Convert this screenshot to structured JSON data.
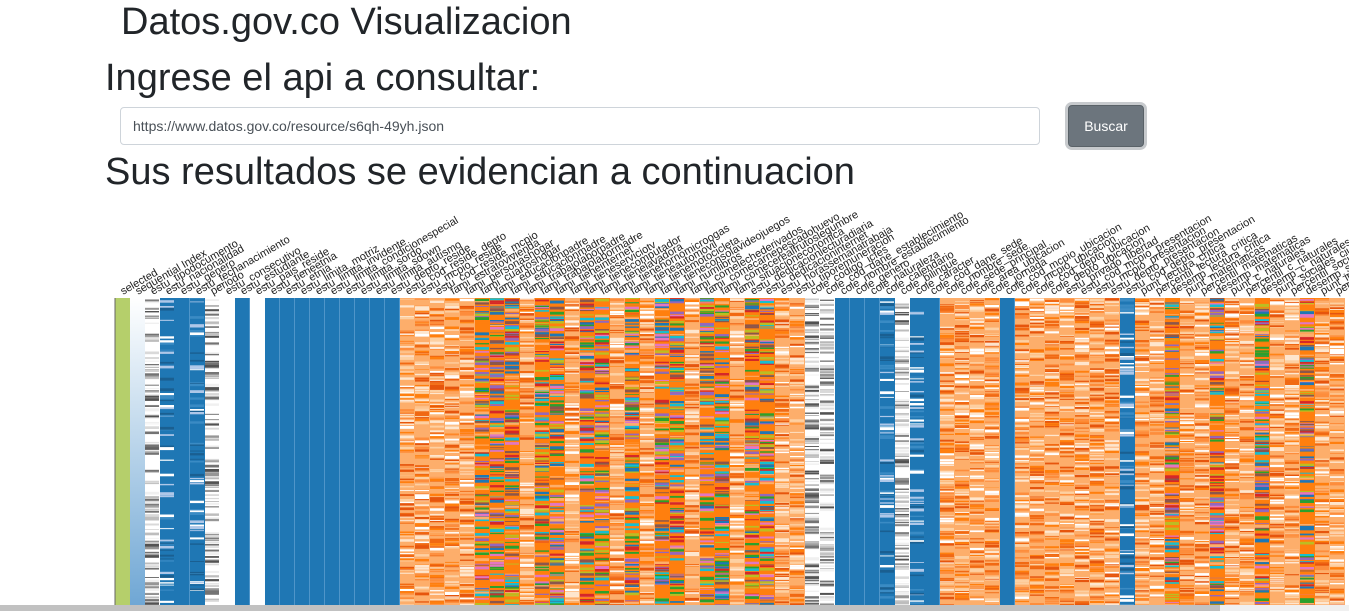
{
  "header": {
    "site_title": "Datos.gov.co Visualizacion",
    "api_prompt": "Ingrese el api a consultar:",
    "results_heading": "Sus resultados se evidencian a continuacion"
  },
  "search": {
    "value": "https://www.datos.gov.co/resource/s6qh-49yh.json",
    "button_label": "Buscar"
  },
  "colors": {
    "blue": "#1f77b4",
    "orange": "#ff7f0e",
    "green": "#2ca02c",
    "red": "#d62728",
    "purple": "#9467bd",
    "brown": "#8c564b",
    "pink": "#e377c2",
    "olive": "#bcbd22",
    "teal": "#17becf",
    "selected": "#b5cf6b"
  },
  "chart_data": {
    "type": "heatmap",
    "title": "",
    "columns": [
      {
        "name": "selected",
        "style": "selected"
      },
      {
        "name": "sequential Index",
        "style": "grad"
      },
      {
        "name": "estu_tipodocumento",
        "style": "gray"
      },
      {
        "name": "estu_nacionalidad",
        "style": "blue_dense"
      },
      {
        "name": "estu_genero",
        "style": "blue"
      },
      {
        "name": "estu_fechanacimiento",
        "style": "blue_dense"
      },
      {
        "name": "periodo",
        "style": "gray"
      },
      {
        "name": "estu_consecutivo",
        "style": "white"
      },
      {
        "name": "estu_estudiante",
        "style": "blue"
      },
      {
        "name": "estu_pais_reside",
        "style": "white"
      },
      {
        "name": "estu_tieneetnia",
        "style": "blue"
      },
      {
        "name": "estu_etnia",
        "style": "blue"
      },
      {
        "name": "estu_limita_motriz",
        "style": "blue"
      },
      {
        "name": "estu_limita_invidente",
        "style": "blue"
      },
      {
        "name": "estu_limita_condicionespecial",
        "style": "blue"
      },
      {
        "name": "estu_limita_sordo",
        "style": "blue"
      },
      {
        "name": "estu_limita_sdown",
        "style": "blue"
      },
      {
        "name": "estu_limita_autismo",
        "style": "blue"
      },
      {
        "name": "estu_depto_reside",
        "style": "blue"
      },
      {
        "name": "estu_cod_reside_depto",
        "style": "orange"
      },
      {
        "name": "estu_mcpio_reside",
        "style": "orange"
      },
      {
        "name": "estu_cod_reside_mcpio",
        "style": "orange"
      },
      {
        "name": "fami_estratovivienda",
        "style": "orange"
      },
      {
        "name": "fami_personashogar",
        "style": "orange"
      },
      {
        "name": "fami_cuartoshogar",
        "style": "mixed"
      },
      {
        "name": "fami_educacionpadre",
        "style": "mixed"
      },
      {
        "name": "fami_educacionmadre",
        "style": "mixed"
      },
      {
        "name": "fami_trabajolaborpadre",
        "style": "orange"
      },
      {
        "name": "fami_trabajolabormadre",
        "style": "mixed"
      },
      {
        "name": "fami_tieneinternet",
        "style": "mixed"
      },
      {
        "name": "fami_tieneserviciotv",
        "style": "orange"
      },
      {
        "name": "fami_tienecomputador",
        "style": "mixed"
      },
      {
        "name": "fami_tienelavadora",
        "style": "mixed"
      },
      {
        "name": "fami_tienehornomicroogas",
        "style": "orange"
      },
      {
        "name": "fami_tieneautomovil",
        "style": "mixed"
      },
      {
        "name": "fami_tienemotocicleta",
        "style": "orange"
      },
      {
        "name": "fami_tieneconsolavideojuegos",
        "style": "mixed"
      },
      {
        "name": "fami_numlibros",
        "style": "mixed"
      },
      {
        "name": "fami_comelechederivados",
        "style": "orange"
      },
      {
        "name": "fami_comecarnepescadohuevo",
        "style": "mixed"
      },
      {
        "name": "fami_comecerealfrutoslegumbre",
        "style": "mixed"
      },
      {
        "name": "fami_situacioneconomica",
        "style": "orange"
      },
      {
        "name": "estu_dedicacionlecturadiaria",
        "style": "mixed"
      },
      {
        "name": "estu_dedicacioninternet",
        "style": "mixed"
      },
      {
        "name": "estu_horassemanatrabaja",
        "style": "orange"
      },
      {
        "name": "estu_tiporemuneracion",
        "style": "orange"
      },
      {
        "name": "cole_codigo_icfes",
        "style": "gray"
      },
      {
        "name": "cole_cod_dane_establecimiento",
        "style": "gray"
      },
      {
        "name": "cole_nombre_establecimiento",
        "style": "blue"
      },
      {
        "name": "cole_genero",
        "style": "blue"
      },
      {
        "name": "cole_naturaleza",
        "style": "blue"
      },
      {
        "name": "cole_calendario",
        "style": "blue_dense"
      },
      {
        "name": "cole_bilingue",
        "style": "gray"
      },
      {
        "name": "cole_caracter",
        "style": "blue_dense"
      },
      {
        "name": "cole_cod_dane_sede",
        "style": "blue"
      },
      {
        "name": "cole_nombre_sede",
        "style": "orange"
      },
      {
        "name": "cole_sede_principal",
        "style": "orange"
      },
      {
        "name": "cole_area_ubicacion",
        "style": "orange"
      },
      {
        "name": "cole_jornada",
        "style": "orange"
      },
      {
        "name": "cole_cod_mcpio_ubicacion",
        "style": "blue"
      },
      {
        "name": "cole_mcpio_ubicacion",
        "style": "orange"
      },
      {
        "name": "cole_cod_depto_ubicacion",
        "style": "orange"
      },
      {
        "name": "cole_depto_ubicacion",
        "style": "orange"
      },
      {
        "name": "estu_privado_libertad",
        "style": "orange"
      },
      {
        "name": "estu_cod_mcpio_presentacion",
        "style": "orange"
      },
      {
        "name": "estu_mcpio_presentacion",
        "style": "orange"
      },
      {
        "name": "estu_depto_presentacion",
        "style": "orange"
      },
      {
        "name": "estu_cod_depto_presentacion",
        "style": "blue_dense"
      },
      {
        "name": "punt_lectura_critica",
        "style": "orange"
      },
      {
        "name": "percentil_lectura_critica",
        "style": "orange"
      },
      {
        "name": "desemp_lectura_critica",
        "style": "mixed"
      },
      {
        "name": "punt_matematicas",
        "style": "orange"
      },
      {
        "name": "percentil_matematicas",
        "style": "orange"
      },
      {
        "name": "desemp_matematicas",
        "style": "mixed"
      },
      {
        "name": "punt_c_naturales",
        "style": "orange"
      },
      {
        "name": "percentil_c_naturales",
        "style": "orange"
      },
      {
        "name": "desemp_c_naturales",
        "style": "mixed"
      },
      {
        "name": "punt_sociales_ciudadanas",
        "style": "orange"
      },
      {
        "name": "percentil_sociales_ciudadanas",
        "style": "orange"
      },
      {
        "name": "desemp_sociales_ciudadanas",
        "style": "mixed"
      },
      {
        "name": "punt_ingles",
        "style": "orange"
      },
      {
        "name": "percentil_ingles",
        "style": "orange"
      }
    ]
  }
}
